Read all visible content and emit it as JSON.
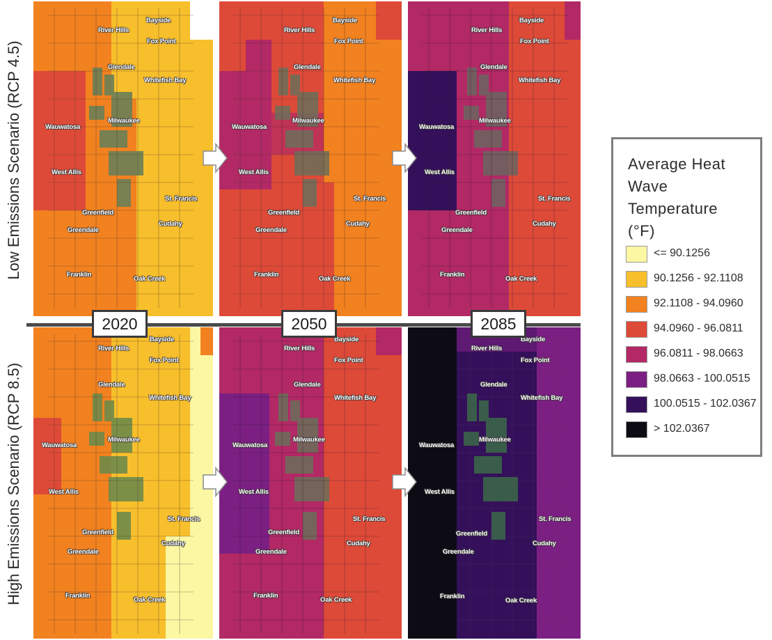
{
  "row_labels": {
    "low": "Low Emissions Scenario (RCP 4.5)",
    "high": "High Emissions Scenario (RCP 8.5)"
  },
  "years": [
    "2020",
    "2050",
    "2085"
  ],
  "legend": {
    "title_lines": [
      "Average Heat",
      "Wave",
      "Temperature",
      "(°F)"
    ],
    "items": [
      {
        "label": "<= 90.1256",
        "color": "#fbf7a3"
      },
      {
        "label": "90.1256 - 92.1108",
        "color": "#f8bf2c"
      },
      {
        "label": "92.1108 - 94.0960",
        "color": "#f2811f"
      },
      {
        "label": "94.0960 - 96.0811",
        "color": "#de4a38"
      },
      {
        "label": "96.0811 - 98.0663",
        "color": "#b22965"
      },
      {
        "label": "98.0663 - 100.0515",
        "color": "#7c1f83"
      },
      {
        "label": "100.0515 - 102.0367",
        "color": "#34105a"
      },
      {
        "label": "> 102.0367",
        "color": "#0d0b14"
      }
    ]
  },
  "places": {
    "river_hills": "River Hills",
    "bayside": "Bayside",
    "fox_point": "Fox Point",
    "glendale": "Glendale",
    "whitefish_bay": "Whitefish Bay",
    "milwaukee": "Milwaukee",
    "wauwatosa": "Wauwatosa",
    "west_allis": "West Allis",
    "st_francis": "St. Francis",
    "greenfield": "Greenfield",
    "cudahy": "Cudahy",
    "greendale": "Greendale",
    "franklin": "Franklin",
    "oak_creek": "Oak Creek"
  },
  "maps": [
    {
      "scenario": "low",
      "year": "2020",
      "bands": [
        "#de4a38",
        "#f2811f",
        "#f8bf2c"
      ]
    },
    {
      "scenario": "low",
      "year": "2050",
      "bands": [
        "#b22965",
        "#de4a38",
        "#f2811f"
      ]
    },
    {
      "scenario": "low",
      "year": "2085",
      "bands": [
        "#34105a",
        "#b22965",
        "#de4a38"
      ]
    },
    {
      "scenario": "high",
      "year": "2020",
      "bands": [
        "#f2811f",
        "#f8bf2c",
        "#fbf7a3"
      ]
    },
    {
      "scenario": "high",
      "year": "2050",
      "bands": [
        "#7c1f83",
        "#b22965",
        "#de4a38"
      ]
    },
    {
      "scenario": "high",
      "year": "2085",
      "bands": [
        "#0d0b14",
        "#34105a",
        "#7c1f83"
      ]
    }
  ]
}
